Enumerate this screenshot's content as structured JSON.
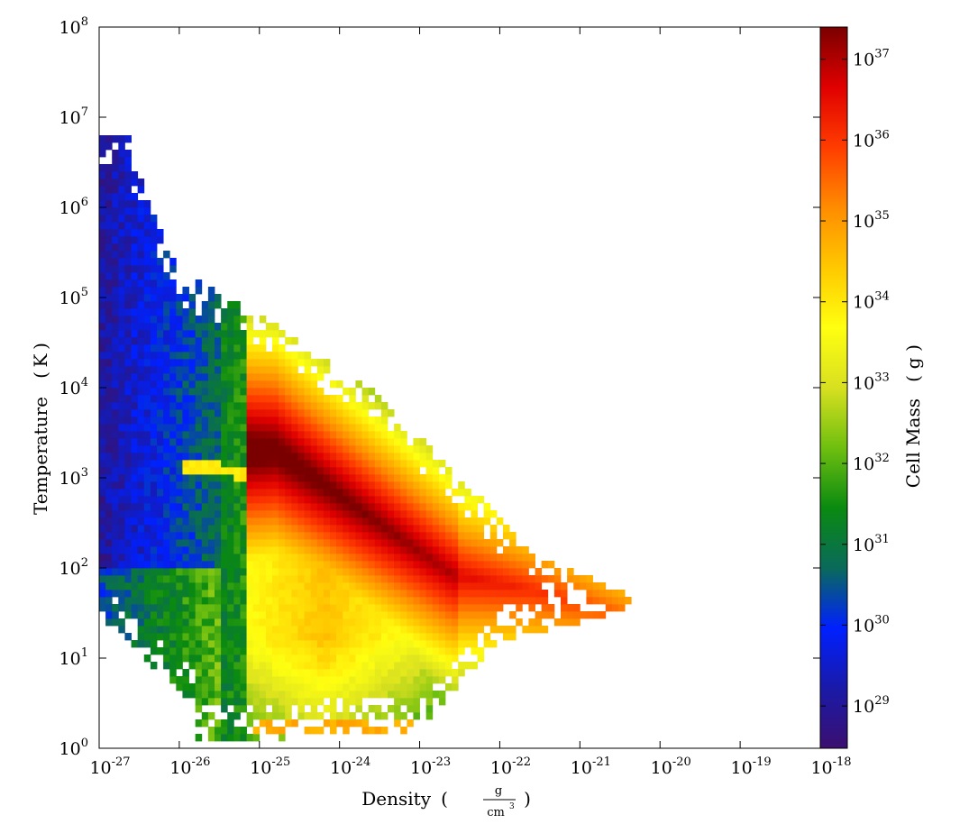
{
  "chart_data": {
    "type": "heatmap",
    "title": "",
    "xlabel": "Density",
    "xlabel_unit": {
      "numerator": "g",
      "denominator": "cm",
      "denominator_exp": "3"
    },
    "ylabel": "Temperature",
    "ylabel_unit": "K",
    "x_scale": "log",
    "y_scale": "log",
    "xlim": [
      1e-27,
      1e-18
    ],
    "ylim": [
      1,
      100000000
    ],
    "x_ticks": [
      {
        "base": "10",
        "exp": "-27"
      },
      {
        "base": "10",
        "exp": "-26"
      },
      {
        "base": "10",
        "exp": "-25"
      },
      {
        "base": "10",
        "exp": "-24"
      },
      {
        "base": "10",
        "exp": "-23"
      },
      {
        "base": "10",
        "exp": "-22"
      },
      {
        "base": "10",
        "exp": "-21"
      },
      {
        "base": "10",
        "exp": "-20"
      },
      {
        "base": "10",
        "exp": "-19"
      },
      {
        "base": "10",
        "exp": "-18"
      }
    ],
    "y_ticks": [
      {
        "base": "10",
        "exp": "0"
      },
      {
        "base": "10",
        "exp": "1"
      },
      {
        "base": "10",
        "exp": "2"
      },
      {
        "base": "10",
        "exp": "3"
      },
      {
        "base": "10",
        "exp": "4"
      },
      {
        "base": "10",
        "exp": "5"
      },
      {
        "base": "10",
        "exp": "6"
      },
      {
        "base": "10",
        "exp": "7"
      },
      {
        "base": "10",
        "exp": "8"
      }
    ],
    "colorbar": {
      "label": "Cell Mass",
      "unit": "g",
      "scale": "log",
      "range": [
        3e+28,
        2.5e+37
      ],
      "ticks": [
        {
          "base": "10",
          "exp": "29"
        },
        {
          "base": "10",
          "exp": "30"
        },
        {
          "base": "10",
          "exp": "31"
        },
        {
          "base": "10",
          "exp": "32"
        },
        {
          "base": "10",
          "exp": "33"
        },
        {
          "base": "10",
          "exp": "34"
        },
        {
          "base": "10",
          "exp": "35"
        },
        {
          "base": "10",
          "exp": "36"
        },
        {
          "base": "10",
          "exp": "37"
        }
      ],
      "colormap": [
        "#3b0f70",
        "#1a1aa8",
        "#0020ff",
        "#0a6a5a",
        "#0a8a10",
        "#6fbf10",
        "#d8e020",
        "#ffff10",
        "#ffc800",
        "#ff8c00",
        "#ff3c00",
        "#e00000",
        "#7a0000"
      ]
    },
    "grid": false,
    "features": [
      {
        "name": "main-ridge",
        "log_density_range": [
          -25,
          -20.1
        ],
        "log_temperature_range": [
          1.4,
          3.3
        ],
        "log_mass_peak": 37
      },
      {
        "name": "low-density-hot-gas",
        "log_density_range": [
          -27,
          -25.5
        ],
        "log_temperature_range": [
          1.5,
          6.8
        ],
        "log_mass_range": [
          29,
          31.5
        ]
      },
      {
        "name": "warm-plateau",
        "log_density_range": [
          -26,
          -23
        ],
        "log_temperature_range": [
          3,
          5
        ],
        "log_mass_range": [
          32,
          33.5
        ]
      },
      {
        "name": "cold-tail",
        "log_density_range": [
          -27,
          -24
        ],
        "log_temperature_range": [
          0.1,
          1.5
        ],
        "log_mass_range": [
          30.5,
          35
        ]
      },
      {
        "name": "floor-band",
        "log_density_range": [
          -25,
          -22.7
        ],
        "log_temperature_range": [
          0.2,
          0.3
        ],
        "log_mass_range": [
          34,
          35.5
        ]
      }
    ]
  }
}
